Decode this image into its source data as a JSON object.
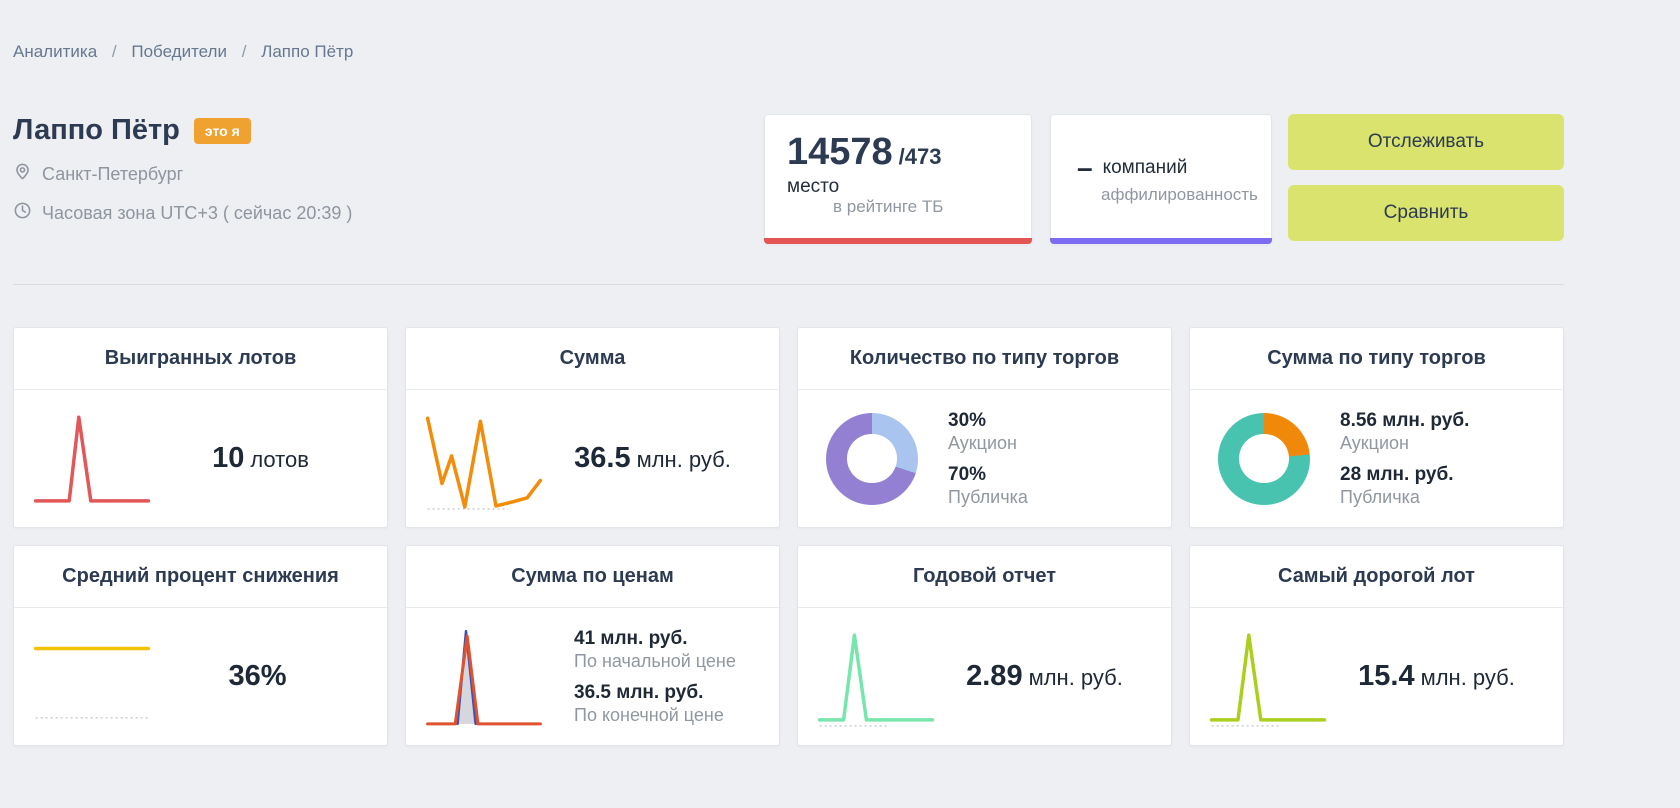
{
  "breadcrumb": {
    "separator": "/",
    "items": [
      "Аналитика",
      "Победители",
      "Лаппо Пётр"
    ]
  },
  "header": {
    "title": "Лаппо Пётр",
    "badge": "это я",
    "location": "Санкт-Петербург",
    "timezone": "Часовая зона UTC+3  ( сейчас 20:39 )",
    "rank": {
      "value": "14578",
      "total": "/473",
      "label1": "место",
      "label2": "в рейтинге ТБ",
      "accent_color": "#e55454"
    },
    "affiliation": {
      "dash": "–",
      "label1": "компаний",
      "label2": "аффилированность",
      "accent_color": "#7b6cf2"
    },
    "buttons": {
      "follow": "Отслеживать",
      "compare": "Сравнить"
    }
  },
  "cards": {
    "won_lots": {
      "title": "Выигранных лотов",
      "value": "10",
      "unit": "лотов",
      "sparkline": {
        "series": [
          {
            "color": "#e25757",
            "width": 3.5,
            "points": [
              [
                3,
                91
              ],
              [
                22,
                91
              ],
              [
                31,
                91
              ],
              [
                39,
                9
              ],
              [
                49,
                91
              ],
              [
                64,
                91
              ],
              [
                80,
                91
              ],
              [
                97,
                91
              ]
            ]
          }
        ]
      }
    },
    "sum": {
      "title": "Сумма",
      "value": "36.5",
      "unit": "млн. руб.",
      "sparkline": {
        "dotted_baseline": 99,
        "dotted_x1": 3,
        "dotted_x2": 70,
        "series": [
          {
            "color": "#f28c0a",
            "width": 3.5,
            "points": [
              [
                3,
                10
              ],
              [
                15,
                74
              ],
              [
                23,
                47
              ],
              [
                34,
                97
              ],
              [
                47,
                13
              ],
              [
                60,
                96
              ],
              [
                74,
                92
              ],
              [
                86,
                88
              ],
              [
                97,
                71
              ]
            ]
          }
        ]
      }
    },
    "count_by_type": {
      "title": "Количество по типу торгов",
      "type": "donut",
      "segments": [
        {
          "value": "30%",
          "label": "Аукцион",
          "percent": 30,
          "color": "#a9c4ef"
        },
        {
          "value": "70%",
          "label": "Публичка",
          "percent": 70,
          "color": "#9480d2"
        }
      ]
    },
    "sum_by_type": {
      "title": "Сумма по типу торгов",
      "type": "donut",
      "segments": [
        {
          "value": "8.56 млн. руб.",
          "label": "Аукцион",
          "percent": 23.4,
          "color": "#f0880a"
        },
        {
          "value": "28 млн. руб.",
          "label": "Публичка",
          "percent": 76.6,
          "color": "#47c3af"
        }
      ]
    },
    "avg_discount": {
      "title": "Средний процент снижения",
      "value": "36%",
      "unit": "",
      "sparkline": {
        "dotted_baseline": 90,
        "dotted_x1": 3,
        "dotted_x2": 97,
        "series": [
          {
            "color": "#f2c206",
            "width": 3.5,
            "points": [
              [
                3,
                22
              ],
              [
                97,
                22
              ]
            ]
          }
        ]
      }
    },
    "sum_by_prices": {
      "title": "Сумма по ценам",
      "rows": [
        {
          "value": "41 млн. руб.",
          "label": "По начальной цене"
        },
        {
          "value": "36.5 млн. руб.",
          "label": "По конечной цене"
        }
      ],
      "sparkline": {
        "series": [
          {
            "fill": "rgba(125,130,145,0.32)",
            "points": [
              [
                28,
                96
              ],
              [
                36,
                7
              ],
              [
                45,
                96
              ]
            ]
          },
          {
            "color": "#3f51b5",
            "width": 2.5,
            "points": [
              [
                28,
                96
              ],
              [
                35,
                5
              ],
              [
                43,
                96
              ]
            ]
          },
          {
            "color": "#e0512d",
            "width": 3,
            "points": [
              [
                3,
                96
              ],
              [
                26,
                96
              ],
              [
                36,
                10
              ],
              [
                45,
                96
              ],
              [
                97,
                96
              ]
            ]
          }
        ]
      }
    },
    "annual_report": {
      "title": "Годовой отчет",
      "value": "2.89",
      "unit": "млн. руб.",
      "sparkline": {
        "dotted_baseline": 98,
        "dotted_x1": 3,
        "dotted_x2": 60,
        "series": [
          {
            "color": "#77e6ad",
            "width": 3.5,
            "points": [
              [
                3,
                92
              ],
              [
                23,
                92
              ],
              [
                32,
                9
              ],
              [
                42,
                92
              ],
              [
                97,
                92
              ]
            ]
          }
        ]
      }
    },
    "most_expensive": {
      "title": "Самый дорогой лот",
      "value": "15.4",
      "unit": "млн. руб.",
      "sparkline": {
        "dotted_baseline": 98,
        "dotted_x1": 3,
        "dotted_x2": 60,
        "series": [
          {
            "color": "#accf1e",
            "width": 3.5,
            "points": [
              [
                3,
                92
              ],
              [
                25,
                92
              ],
              [
                34,
                9
              ],
              [
                44,
                92
              ],
              [
                97,
                92
              ]
            ]
          }
        ]
      }
    }
  }
}
